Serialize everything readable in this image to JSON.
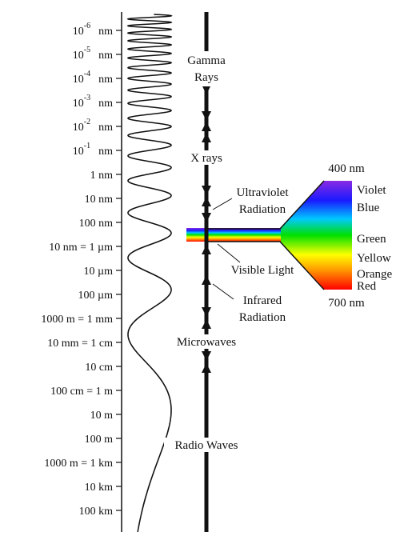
{
  "scale": [
    {
      "base": "10",
      "exp": "-6",
      "unit": "nm"
    },
    {
      "base": "10",
      "exp": "-5",
      "unit": "nm"
    },
    {
      "base": "10",
      "exp": "-4",
      "unit": "nm"
    },
    {
      "base": "10",
      "exp": "-3",
      "unit": "nm"
    },
    {
      "base": "10",
      "exp": "-2",
      "unit": "nm"
    },
    {
      "base": "10",
      "exp": "-1",
      "unit": "nm"
    },
    {
      "label": "1 nm"
    },
    {
      "label": "10 nm"
    },
    {
      "label": "100 nm"
    },
    {
      "label": "10   nm = 1 µm"
    },
    {
      "label": "10 µm"
    },
    {
      "label": "100 µm"
    },
    {
      "label": "1000   m = 1 mm"
    },
    {
      "label": "10 mm = 1 cm"
    },
    {
      "label": "10 cm"
    },
    {
      "label": "100 cm = 1 m"
    },
    {
      "label": "10 m"
    },
    {
      "label": "100 m"
    },
    {
      "label": "1000 m = 1 km"
    },
    {
      "label": "10 km"
    },
    {
      "label": "100 km"
    }
  ],
  "bands": {
    "gamma": [
      "Gamma",
      "Rays"
    ],
    "xrays": "X rays",
    "ultraviolet": [
      "Ultraviolet",
      "Radiation"
    ],
    "visible": "Visible Light",
    "infrared": [
      "Infrared",
      "Radiation"
    ],
    "microwaves": "Microwaves",
    "radio": "Radio Waves"
  },
  "spectrum": {
    "start": "400 nm",
    "end": "700 nm",
    "colors": [
      "Violet",
      "Blue",
      "Green",
      "Yellow",
      "Orange",
      "Red"
    ]
  }
}
